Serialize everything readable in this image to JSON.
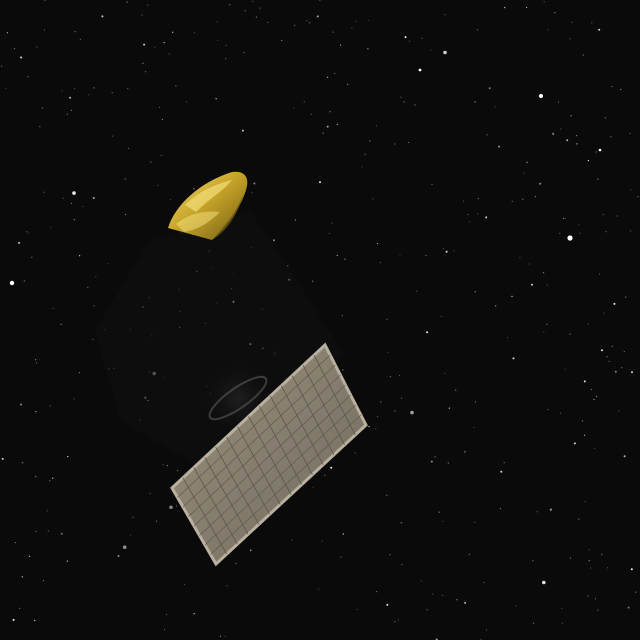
{
  "scene": {
    "subject": "spacecraft-in-starfield",
    "colors": {
      "space": "#0a0a0a",
      "star": "#ffffff",
      "star_dim": "#8f8f8f",
      "gold_foil": "#c9a62a",
      "gold_highlight": "#f2de7a",
      "gold_shadow": "#6e5a12",
      "panel_face": "#8a8274",
      "panel_frame": "#b9b0a0",
      "panel_grid": "#5c554a",
      "body_dark": "#111111",
      "ring": "#4a4a4a"
    }
  }
}
